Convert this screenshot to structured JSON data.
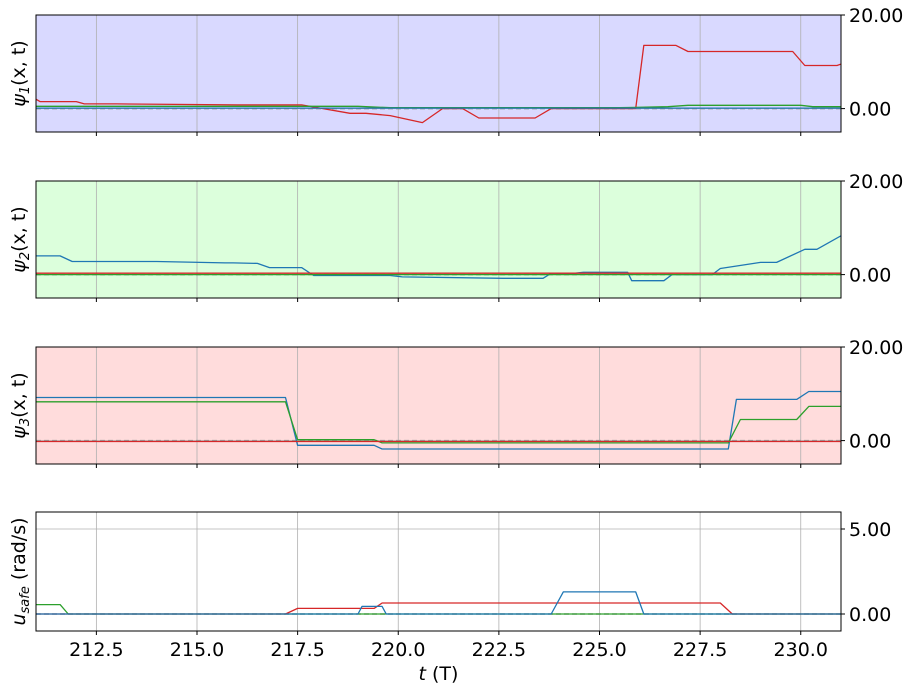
{
  "chart_data": [
    {
      "type": "line",
      "ylabel_base": "ψ",
      "ylabel_sub": "1",
      "ylabel_tail": "(x, t)",
      "background": "#d9d9ff",
      "xlim": [
        211,
        231
      ],
      "ylim": [
        -5,
        20
      ],
      "yticks": [
        "0.00",
        "20.00"
      ],
      "ytick_values": [
        0,
        20
      ],
      "xticks": [
        212.5,
        215.0,
        217.5,
        220.0,
        222.5,
        225.0,
        227.5,
        230.0
      ],
      "grid": true,
      "zero_line": true,
      "series": [
        {
          "color": "#d62728",
          "x": [
            211,
            211.1,
            212.0,
            212.2,
            213.0,
            216.0,
            217.6,
            218.8,
            219.2,
            219.8,
            220.6,
            221.1,
            221.6,
            222.0,
            223.4,
            223.8,
            225.9,
            226.1,
            226.9,
            227.2,
            229.8,
            230.1,
            230.9,
            231
          ],
          "y": [
            2,
            1.5,
            1.5,
            1.0,
            1.0,
            0.8,
            0.8,
            -1.0,
            -1.0,
            -1.5,
            -3.0,
            0.0,
            0.0,
            -2.0,
            -2.0,
            0.0,
            0.0,
            13.5,
            13.5,
            12.2,
            12.2,
            9.2,
            9.2,
            9.5
          ]
        },
        {
          "color": "#2ca02c",
          "x": [
            211,
            219.0,
            219.8,
            225.5,
            226.7,
            227.2,
            230.0,
            230.3,
            231
          ],
          "y": [
            0.5,
            0.5,
            0.2,
            0.2,
            0.4,
            0.7,
            0.7,
            0.4,
            0.4
          ]
        },
        {
          "color": "#1f77b4",
          "x": [
            211,
            231
          ],
          "y": [
            0.1,
            0.1
          ]
        }
      ]
    },
    {
      "type": "line",
      "ylabel_base": "ψ",
      "ylabel_sub": "2",
      "ylabel_tail": "(x, t)",
      "background": "#dcffdc",
      "xlim": [
        211,
        231
      ],
      "ylim": [
        -5,
        20
      ],
      "yticks": [
        "0.00",
        "20.00"
      ],
      "ytick_values": [
        0,
        20
      ],
      "xticks": [
        212.5,
        215.0,
        217.5,
        220.0,
        222.5,
        225.0,
        227.5,
        230.0
      ],
      "grid": true,
      "zero_line": true,
      "series": [
        {
          "color": "#1f77b4",
          "x": [
            211,
            211.6,
            211.9,
            213.9,
            214.0,
            215.7,
            215.9,
            216.5,
            216.8,
            217.6,
            217.9,
            219.8,
            220.1,
            222.6,
            222.7,
            223.6,
            223.8,
            224.4,
            224.6,
            225.7,
            225.8,
            226.6,
            226.8,
            227.8,
            228.0,
            229.0,
            229.4,
            230.1,
            230.4,
            231
          ],
          "y": [
            4.0,
            4.0,
            2.8,
            2.8,
            2.8,
            2.5,
            2.5,
            2.4,
            1.5,
            1.5,
            -0.2,
            -0.2,
            -0.5,
            -0.8,
            -0.8,
            -0.8,
            0.3,
            0.3,
            0.5,
            0.5,
            -1.3,
            -1.3,
            0.0,
            0.0,
            1.3,
            2.6,
            2.6,
            5.4,
            5.4,
            8.3
          ]
        },
        {
          "color": "#d62728",
          "x": [
            211,
            231
          ],
          "y": [
            0.3,
            0.3
          ]
        },
        {
          "color": "#2ca02c",
          "x": [
            211,
            231
          ],
          "y": [
            0.0,
            0.0
          ]
        }
      ]
    },
    {
      "type": "line",
      "ylabel_base": "ψ",
      "ylabel_sub": "3",
      "ylabel_tail": "(x, t)",
      "background": "#ffdcdc",
      "xlim": [
        211,
        231
      ],
      "ylim": [
        -5,
        20
      ],
      "yticks": [
        "0.00",
        "20.00"
      ],
      "ytick_values": [
        0,
        20
      ],
      "xticks": [
        212.5,
        215.0,
        217.5,
        220.0,
        222.5,
        225.0,
        227.5,
        230.0
      ],
      "grid": true,
      "zero_line": true,
      "series": [
        {
          "color": "#1f77b4",
          "x": [
            211,
            217.2,
            217.5,
            219.4,
            219.6,
            228.2,
            228.4,
            229.9,
            230.2,
            231
          ],
          "y": [
            9.2,
            9.2,
            -1.0,
            -1.0,
            -1.8,
            -1.8,
            8.8,
            8.8,
            10.5,
            10.5
          ]
        },
        {
          "color": "#2ca02c",
          "x": [
            211,
            217.2,
            217.5,
            219.4,
            219.6,
            228.2,
            228.5,
            229.9,
            230.2,
            231
          ],
          "y": [
            8.3,
            8.3,
            0.2,
            0.2,
            -0.5,
            -0.5,
            4.5,
            4.5,
            7.3,
            7.3
          ]
        },
        {
          "color": "#d62728",
          "x": [
            211,
            231
          ],
          "y": [
            -0.2,
            -0.2
          ]
        }
      ]
    },
    {
      "type": "line",
      "ylabel_base": "u",
      "ylabel_sub": "safe",
      "ylabel_tail": " (rad/s)",
      "background": "#ffffff",
      "xlabel_base": "t",
      "xlabel_tail": " (T)",
      "xlim": [
        211,
        231
      ],
      "ylim": [
        -1,
        6
      ],
      "yticks": [
        "0.00",
        "5.00"
      ],
      "ytick_values": [
        0,
        5
      ],
      "xticks": [
        212.5,
        215.0,
        217.5,
        220.0,
        222.5,
        225.0,
        227.5,
        230.0
      ],
      "xtick_labels": [
        "212.5",
        "215.0",
        "217.5",
        "220.0",
        "222.5",
        "225.0",
        "227.5",
        "230.0"
      ],
      "grid": true,
      "zero_line": true,
      "series": [
        {
          "color": "#2ca02c",
          "x": [
            211,
            211.6,
            211.8,
            231
          ],
          "y": [
            0.55,
            0.55,
            0.0,
            0.0
          ]
        },
        {
          "color": "#d62728",
          "x": [
            211,
            217.2,
            217.5,
            219.4,
            219.6,
            228.0,
            228.3,
            231
          ],
          "y": [
            0.0,
            0.0,
            0.33,
            0.33,
            0.65,
            0.65,
            0.0,
            0.0
          ]
        },
        {
          "color": "#1f77b4",
          "x": [
            211,
            219.0,
            219.1,
            219.6,
            219.7,
            223.8,
            224.1,
            225.9,
            226.1,
            231
          ],
          "y": [
            0.0,
            0.0,
            0.45,
            0.45,
            0.0,
            0.0,
            1.3,
            1.3,
            0.0,
            0.0
          ]
        }
      ]
    }
  ]
}
